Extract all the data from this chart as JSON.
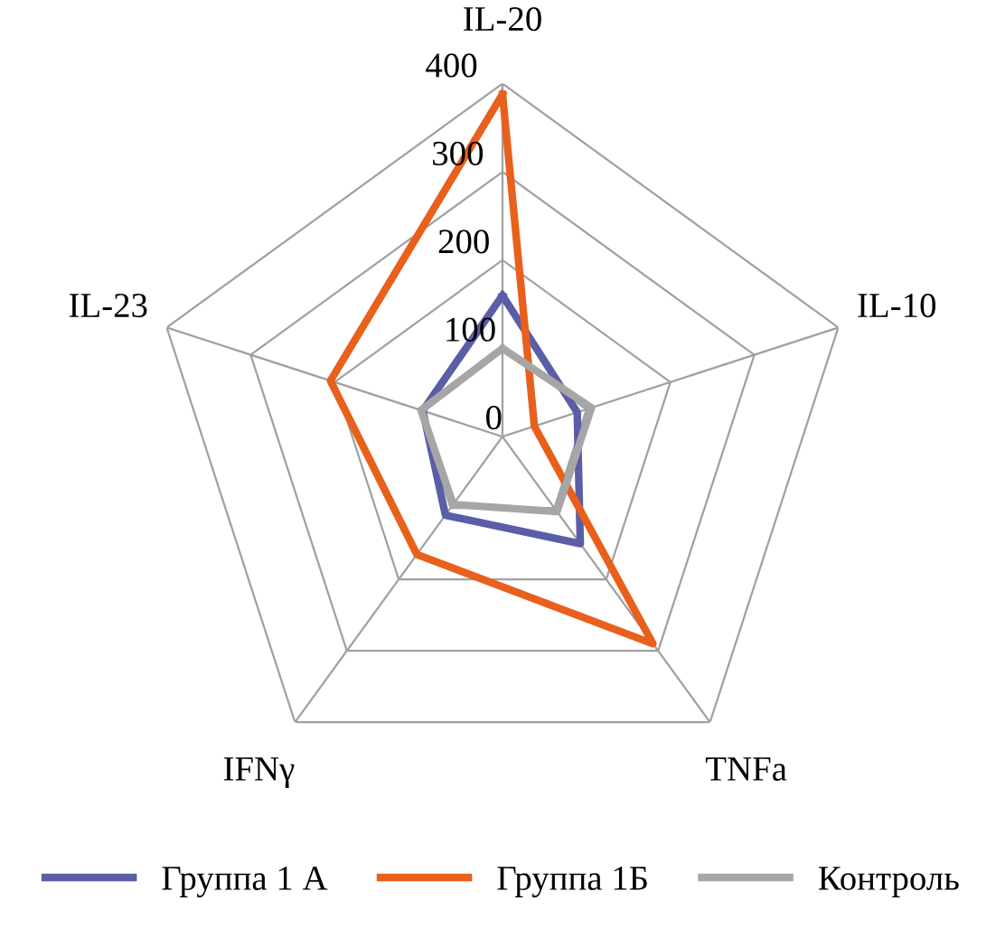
{
  "chart_data": {
    "type": "radar",
    "categories": [
      "IL-20",
      "IL-10",
      "TNFa",
      "IFNγ",
      "IL-23"
    ],
    "series": [
      {
        "name": "Группа 1 А",
        "color": "#5a5ea6",
        "values": [
          160,
          89,
          150,
          110,
          95
        ]
      },
      {
        "name": "Группа 1Б",
        "color": "#e8601c",
        "values": [
          388,
          38,
          290,
          165,
          205
        ]
      },
      {
        "name": "Контроль",
        "color": "#a6a6a6",
        "values": [
          100,
          106,
          105,
          95,
          97
        ]
      }
    ],
    "ylim": [
      0,
      400
    ],
    "yticks": [
      0,
      100,
      200,
      300,
      400
    ],
    "grid": true,
    "legend": "bottom",
    "marker": "none",
    "line_style": "solid"
  }
}
